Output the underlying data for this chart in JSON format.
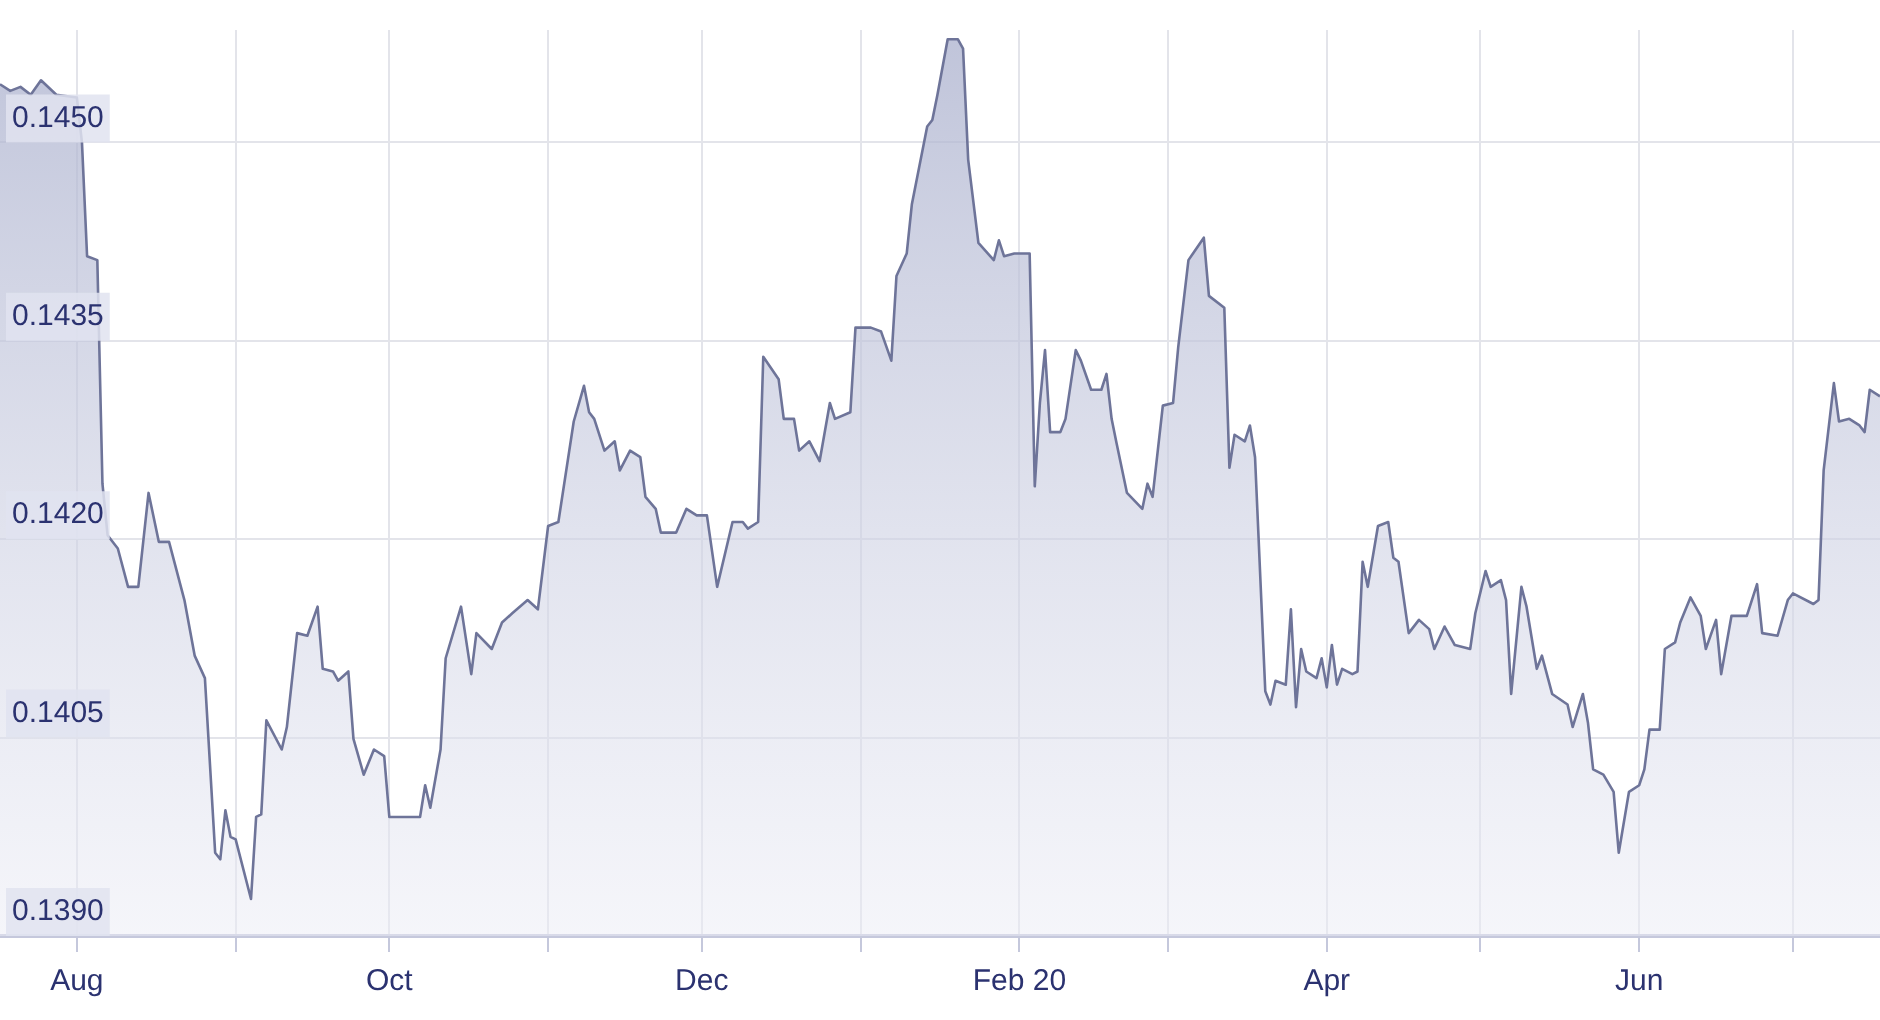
{
  "chart_data": {
    "type": "area",
    "color": "#6e7499",
    "x": [
      "2019-07-17",
      "2019-07-19",
      "2019-07-21",
      "2019-07-23",
      "2019-07-25",
      "2019-07-28",
      "2019-08-01",
      "2019-08-02",
      "2019-08-03",
      "2019-08-05",
      "2019-08-06",
      "2019-08-07",
      "2019-08-09",
      "2019-08-11",
      "2019-08-13",
      "2019-08-15",
      "2019-08-17",
      "2019-08-19",
      "2019-08-22",
      "2019-08-24",
      "2019-08-26",
      "2019-08-28",
      "2019-08-29",
      "2019-08-30",
      "2019-08-31",
      "2019-09-01",
      "2019-09-04",
      "2019-09-05",
      "2019-09-06",
      "2019-09-07",
      "2019-09-10",
      "2019-09-11",
      "2019-09-13",
      "2019-09-15",
      "2019-09-17",
      "2019-09-18",
      "2019-09-20",
      "2019-09-21",
      "2019-09-23",
      "2019-09-24",
      "2019-09-26",
      "2019-09-28",
      "2019-09-30",
      "2019-10-01",
      "2019-10-07",
      "2019-10-08",
      "2019-10-09",
      "2019-10-11",
      "2019-10-12",
      "2019-10-15",
      "2019-10-17",
      "2019-10-18",
      "2019-10-21",
      "2019-10-23",
      "2019-10-25",
      "2019-10-28",
      "2019-10-30",
      "2019-11-01",
      "2019-11-03",
      "2019-11-06",
      "2019-11-08",
      "2019-11-09",
      "2019-11-10",
      "2019-11-12",
      "2019-11-14",
      "2019-11-15",
      "2019-11-17",
      "2019-11-19",
      "2019-11-20",
      "2019-11-22",
      "2019-11-23",
      "2019-11-26",
      "2019-11-28",
      "2019-11-30",
      "2019-12-02",
      "2019-12-04",
      "2019-12-07",
      "2019-12-09",
      "2019-12-10",
      "2019-12-12",
      "2019-12-13",
      "2019-12-16",
      "2019-12-17",
      "2019-12-19",
      "2019-12-20",
      "2019-12-22",
      "2019-12-24",
      "2019-12-26",
      "2019-12-27",
      "2019-12-30",
      "2019-12-31",
      "2020-01-03",
      "2020-01-05",
      "2020-01-07",
      "2020-01-08",
      "2020-01-10",
      "2020-01-11",
      "2020-01-14",
      "2020-01-15",
      "2020-01-16",
      "2020-01-18",
      "2020-01-20",
      "2020-01-21",
      "2020-01-22",
      "2020-01-24",
      "2020-01-27",
      "2020-01-28",
      "2020-01-29",
      "2020-01-31",
      "2020-02-03",
      "2020-02-04",
      "2020-02-05",
      "2020-02-06",
      "2020-02-07",
      "2020-02-09",
      "2020-02-10",
      "2020-02-12",
      "2020-02-13",
      "2020-02-15",
      "2020-02-17",
      "2020-02-18",
      "2020-02-19",
      "2020-02-20",
      "2020-02-22",
      "2020-02-25",
      "2020-02-26",
      "2020-02-27",
      "2020-02-29",
      "2020-03-02",
      "2020-03-03",
      "2020-03-05",
      "2020-03-08",
      "2020-03-09",
      "2020-03-12",
      "2020-03-13",
      "2020-03-14",
      "2020-03-16",
      "2020-03-17",
      "2020-03-18",
      "2020-03-20",
      "2020-03-21",
      "2020-03-22",
      "2020-03-24",
      "2020-03-25",
      "2020-03-26",
      "2020-03-27",
      "2020-03-28",
      "2020-03-30",
      "2020-03-31",
      "2020-04-01",
      "2020-04-02",
      "2020-04-03",
      "2020-04-04",
      "2020-04-06",
      "2020-04-07",
      "2020-04-08",
      "2020-04-09",
      "2020-04-11",
      "2020-04-13",
      "2020-04-14",
      "2020-04-15",
      "2020-04-17",
      "2020-04-19",
      "2020-04-21",
      "2020-04-22",
      "2020-04-24",
      "2020-04-26",
      "2020-04-29",
      "2020-04-30",
      "2020-05-02",
      "2020-05-03",
      "2020-05-05",
      "2020-05-06",
      "2020-05-07",
      "2020-05-09",
      "2020-05-10",
      "2020-05-12",
      "2020-05-13",
      "2020-05-15",
      "2020-05-18",
      "2020-05-19",
      "2020-05-21",
      "2020-05-22",
      "2020-05-23",
      "2020-05-25",
      "2020-05-27",
      "2020-05-28",
      "2020-05-30",
      "2020-06-01",
      "2020-06-02",
      "2020-06-03",
      "2020-06-05",
      "2020-06-06",
      "2020-06-08",
      "2020-06-09",
      "2020-06-11",
      "2020-06-13",
      "2020-06-14",
      "2020-06-16",
      "2020-06-17",
      "2020-06-19",
      "2020-06-22",
      "2020-06-24",
      "2020-06-25",
      "2020-06-28",
      "2020-06-30",
      "2020-07-01",
      "2020-07-05",
      "2020-07-06",
      "2020-07-07",
      "2020-07-09",
      "2020-07-10",
      "2020-07-12",
      "2020-07-14",
      "2020-07-15",
      "2020-07-16",
      "2020-07-18"
    ],
    "values": [
      0.14544,
      0.14539,
      0.14542,
      0.14536,
      0.14547,
      0.14536,
      0.14534,
      0.145,
      0.14414,
      0.14411,
      0.14242,
      0.14203,
      0.14193,
      0.14164,
      0.14164,
      0.14235,
      0.14198,
      0.14198,
      0.14154,
      0.14112,
      0.14095,
      0.13963,
      0.13958,
      0.13995,
      0.13975,
      0.13973,
      0.13928,
      0.1399,
      0.13992,
      0.14063,
      0.14041,
      0.14058,
      0.14129,
      0.14127,
      0.14149,
      0.14102,
      0.141,
      0.14093,
      0.141,
      0.14049,
      0.14022,
      0.14041,
      0.14036,
      0.1399,
      0.1399,
      0.14014,
      0.13997,
      0.14041,
      0.1411,
      0.14149,
      0.14098,
      0.14129,
      0.14117,
      0.14137,
      0.14144,
      0.14154,
      0.14147,
      0.1421,
      0.14213,
      0.14289,
      0.14316,
      0.14296,
      0.14291,
      0.14267,
      0.14274,
      0.14252,
      0.14267,
      0.14262,
      0.14232,
      0.14223,
      0.14205,
      0.14205,
      0.14223,
      0.14218,
      0.14218,
      0.14164,
      0.14213,
      0.14213,
      0.14208,
      0.14213,
      0.14338,
      0.14321,
      0.14291,
      0.14291,
      0.14267,
      0.14274,
      0.14259,
      0.14303,
      0.14291,
      0.14296,
      0.1436,
      0.1436,
      0.14357,
      0.14335,
      0.14399,
      0.14416,
      0.14453,
      0.14512,
      0.14517,
      0.14536,
      0.14578,
      0.14578,
      0.14571,
      0.14487,
      0.14424,
      0.14411,
      0.14426,
      0.14414,
      0.14416,
      0.14416,
      0.1424,
      0.14303,
      0.14343,
      0.14281,
      0.14281,
      0.14291,
      0.14343,
      0.14335,
      0.14313,
      0.14313,
      0.14325,
      0.14291,
      0.14272,
      0.14235,
      0.14223,
      0.14242,
      0.14232,
      0.14301,
      0.14303,
      0.14345,
      0.14411,
      0.14428,
      0.14384,
      0.14375,
      0.14254,
      0.14279,
      0.14274,
      0.14286,
      0.14262,
      0.14085,
      0.14075,
      0.14093,
      0.1409,
      0.14147,
      0.14073,
      0.14117,
      0.141,
      0.14095,
      0.1411,
      0.14088,
      0.1412,
      0.1409,
      0.14102,
      0.14098,
      0.141,
      0.14183,
      0.14164,
      0.1421,
      0.14213,
      0.14186,
      0.14183,
      0.14129,
      0.14139,
      0.14132,
      0.14117,
      0.14134,
      0.1412,
      0.14117,
      0.14144,
      0.14176,
      0.14164,
      0.14169,
      0.14154,
      0.14083,
      0.14164,
      0.14149,
      0.14102,
      0.14112,
      0.14083,
      0.14075,
      0.14058,
      0.14083,
      0.14061,
      0.14026,
      0.14022,
      0.14009,
      0.13963,
      0.14009,
      0.14014,
      0.14026,
      0.14056,
      0.14056,
      0.14117,
      0.14122,
      0.14137,
      0.14156,
      0.14142,
      0.14117,
      0.14139,
      0.14098,
      0.14142,
      0.14142,
      0.14166,
      0.14129,
      0.14127,
      0.14154,
      0.14159,
      0.14151,
      0.14154,
      0.14252,
      0.14318,
      0.14289,
      0.14291,
      0.14286,
      0.14281,
      0.14313,
      0.14308
    ],
    "xlim": [
      "2019-07-17",
      "2020-07-18"
    ],
    "ylim": [
      0.139,
      0.14585
    ],
    "yticks": [
      {
        "value": 0.139,
        "label": "0.1390"
      },
      {
        "value": 0.1405,
        "label": "0.1405"
      },
      {
        "value": 0.142,
        "label": "0.1420"
      },
      {
        "value": 0.1435,
        "label": "0.1435"
      },
      {
        "value": 0.145,
        "label": "0.1450"
      }
    ],
    "xticks": [
      {
        "value": "2019-08-01",
        "label": "Aug"
      },
      {
        "value": "2019-09-01",
        "label": null
      },
      {
        "value": "2019-10-01",
        "label": "Oct"
      },
      {
        "value": "2019-11-01",
        "label": null
      },
      {
        "value": "2019-12-01",
        "label": "Dec"
      },
      {
        "value": "2020-01-01",
        "label": null
      },
      {
        "value": "2020-02-01",
        "label": "Feb 20"
      },
      {
        "value": "2020-03-01",
        "label": null
      },
      {
        "value": "2020-04-01",
        "label": "Apr"
      },
      {
        "value": "2020-05-01",
        "label": null
      },
      {
        "value": "2020-06-01",
        "label": "Jun"
      },
      {
        "value": "2020-07-01",
        "label": null
      }
    ],
    "grid": true
  }
}
